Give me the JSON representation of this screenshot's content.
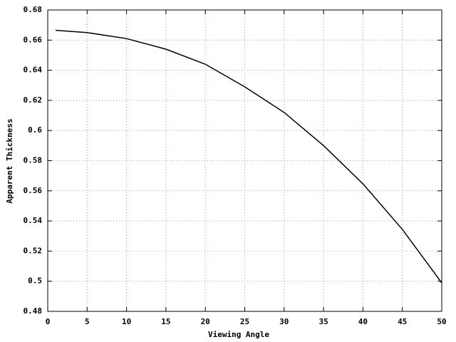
{
  "chart_data": {
    "type": "line",
    "x_label": "Viewing Angle",
    "y_label": "Apparent Thickness",
    "x": [
      1,
      5,
      10,
      15,
      20,
      25,
      30,
      35,
      40,
      45,
      50
    ],
    "values": [
      0.6665,
      0.665,
      0.661,
      0.654,
      0.644,
      0.629,
      0.612,
      0.59,
      0.5646,
      0.5344,
      0.4989
    ],
    "color": "#000000",
    "xlim": [
      0,
      50
    ],
    "xticks": [
      0,
      5,
      10,
      15,
      20,
      25,
      30,
      35,
      40,
      45,
      50
    ],
    "ylim": [
      0.48,
      0.68
    ],
    "yticks": [
      0.48,
      0.5,
      0.52,
      0.54,
      0.56,
      0.58,
      0.6,
      0.62,
      0.64,
      0.66,
      0.68
    ],
    "grid": true
  }
}
